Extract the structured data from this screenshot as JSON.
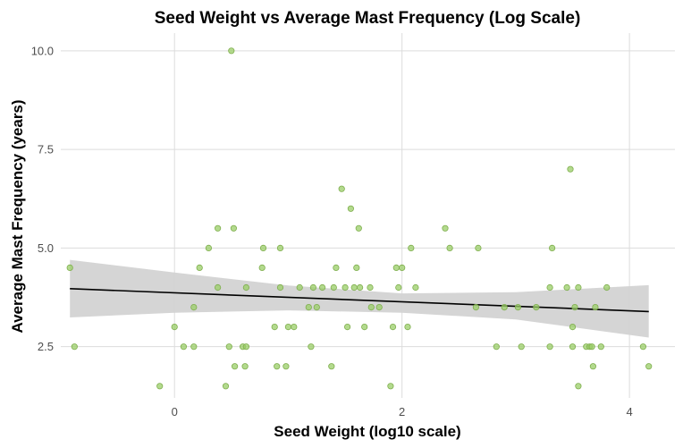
{
  "chart_data": {
    "type": "scatter",
    "title": "Seed Weight vs Average Mast Frequency (Log Scale)",
    "xlabel": "Seed Weight (log10 scale)",
    "ylabel": "Average Mast Frequency (years)",
    "xlim": [
      -1.0,
      4.4
    ],
    "ylim": [
      1.2,
      10.45
    ],
    "x_ticks": [
      0,
      2,
      4
    ],
    "x_tick_labels": [
      "0",
      "2",
      "4"
    ],
    "y_ticks": [
      2.5,
      5.0,
      7.5,
      10.0
    ],
    "y_tick_labels": [
      "2.5",
      "5.0",
      "7.5",
      "10.0"
    ],
    "grid": true,
    "point_color": "#9ACD67",
    "point_edge_color": "#7FAE4E",
    "trend_color": "#000000",
    "band_color": "#D3D3D3",
    "points": [
      {
        "x": -0.92,
        "y": 4.5
      },
      {
        "x": -0.88,
        "y": 2.5
      },
      {
        "x": -0.13,
        "y": 1.5
      },
      {
        "x": 0.0,
        "y": 3.0
      },
      {
        "x": 0.08,
        "y": 2.5
      },
      {
        "x": 0.17,
        "y": 2.5
      },
      {
        "x": 0.17,
        "y": 3.5
      },
      {
        "x": 0.22,
        "y": 4.5
      },
      {
        "x": 0.3,
        "y": 5.0
      },
      {
        "x": 0.38,
        "y": 5.5
      },
      {
        "x": 0.38,
        "y": 4.0
      },
      {
        "x": 0.45,
        "y": 1.5
      },
      {
        "x": 0.48,
        "y": 2.5
      },
      {
        "x": 0.5,
        "y": 10.0
      },
      {
        "x": 0.52,
        "y": 5.5
      },
      {
        "x": 0.53,
        "y": 2.0
      },
      {
        "x": 0.6,
        "y": 2.5
      },
      {
        "x": 0.62,
        "y": 2.0
      },
      {
        "x": 0.63,
        "y": 2.5
      },
      {
        "x": 0.63,
        "y": 4.0
      },
      {
        "x": 0.77,
        "y": 4.5
      },
      {
        "x": 0.78,
        "y": 5.0
      },
      {
        "x": 0.88,
        "y": 3.0
      },
      {
        "x": 0.9,
        "y": 2.0
      },
      {
        "x": 0.93,
        "y": 5.0
      },
      {
        "x": 0.93,
        "y": 4.0
      },
      {
        "x": 0.98,
        "y": 2.0
      },
      {
        "x": 1.0,
        "y": 3.0
      },
      {
        "x": 1.05,
        "y": 3.0
      },
      {
        "x": 1.1,
        "y": 4.0
      },
      {
        "x": 1.18,
        "y": 3.5
      },
      {
        "x": 1.2,
        "y": 2.5
      },
      {
        "x": 1.22,
        "y": 4.0
      },
      {
        "x": 1.25,
        "y": 3.5
      },
      {
        "x": 1.3,
        "y": 4.0
      },
      {
        "x": 1.38,
        "y": 2.0
      },
      {
        "x": 1.4,
        "y": 4.0
      },
      {
        "x": 1.42,
        "y": 4.5
      },
      {
        "x": 1.47,
        "y": 6.5
      },
      {
        "x": 1.5,
        "y": 4.0
      },
      {
        "x": 1.52,
        "y": 3.0
      },
      {
        "x": 1.55,
        "y": 6.0
      },
      {
        "x": 1.58,
        "y": 4.0
      },
      {
        "x": 1.6,
        "y": 4.5
      },
      {
        "x": 1.62,
        "y": 5.5
      },
      {
        "x": 1.63,
        "y": 4.0
      },
      {
        "x": 1.67,
        "y": 3.0
      },
      {
        "x": 1.72,
        "y": 4.0
      },
      {
        "x": 1.73,
        "y": 3.5
      },
      {
        "x": 1.8,
        "y": 3.5
      },
      {
        "x": 1.9,
        "y": 1.5
      },
      {
        "x": 1.92,
        "y": 3.0
      },
      {
        "x": 1.95,
        "y": 4.5
      },
      {
        "x": 1.97,
        "y": 4.0
      },
      {
        "x": 2.0,
        "y": 4.5
      },
      {
        "x": 2.05,
        "y": 3.0
      },
      {
        "x": 2.08,
        "y": 5.0
      },
      {
        "x": 2.12,
        "y": 4.0
      },
      {
        "x": 2.38,
        "y": 5.5
      },
      {
        "x": 2.42,
        "y": 5.0
      },
      {
        "x": 2.65,
        "y": 3.5
      },
      {
        "x": 2.67,
        "y": 5.0
      },
      {
        "x": 2.83,
        "y": 2.5
      },
      {
        "x": 2.9,
        "y": 3.5
      },
      {
        "x": 3.02,
        "y": 3.5
      },
      {
        "x": 3.05,
        "y": 2.5
      },
      {
        "x": 3.18,
        "y": 3.5
      },
      {
        "x": 3.3,
        "y": 2.5
      },
      {
        "x": 3.3,
        "y": 4.0
      },
      {
        "x": 3.32,
        "y": 5.0
      },
      {
        "x": 3.45,
        "y": 4.0
      },
      {
        "x": 3.48,
        "y": 7.0
      },
      {
        "x": 3.5,
        "y": 3.0
      },
      {
        "x": 3.5,
        "y": 2.5
      },
      {
        "x": 3.52,
        "y": 3.5
      },
      {
        "x": 3.55,
        "y": 1.5
      },
      {
        "x": 3.55,
        "y": 4.0
      },
      {
        "x": 3.62,
        "y": 2.5
      },
      {
        "x": 3.65,
        "y": 2.5
      },
      {
        "x": 3.67,
        "y": 2.5
      },
      {
        "x": 3.68,
        "y": 2.0
      },
      {
        "x": 3.7,
        "y": 3.5
      },
      {
        "x": 3.75,
        "y": 2.5
      },
      {
        "x": 3.8,
        "y": 4.0
      },
      {
        "x": 4.12,
        "y": 2.5
      },
      {
        "x": 4.17,
        "y": 2.0
      }
    ],
    "trend_line": {
      "x": [
        -0.92,
        4.17
      ],
      "y": [
        3.97,
        3.39
      ]
    },
    "confidence_band": {
      "x": [
        -0.92,
        0.0,
        1.0,
        2.0,
        3.0,
        4.17
      ],
      "upper": [
        4.7,
        4.38,
        4.05,
        3.85,
        3.88,
        4.06
      ],
      "lower": [
        3.24,
        3.36,
        3.42,
        3.36,
        3.19,
        2.73
      ]
    }
  }
}
